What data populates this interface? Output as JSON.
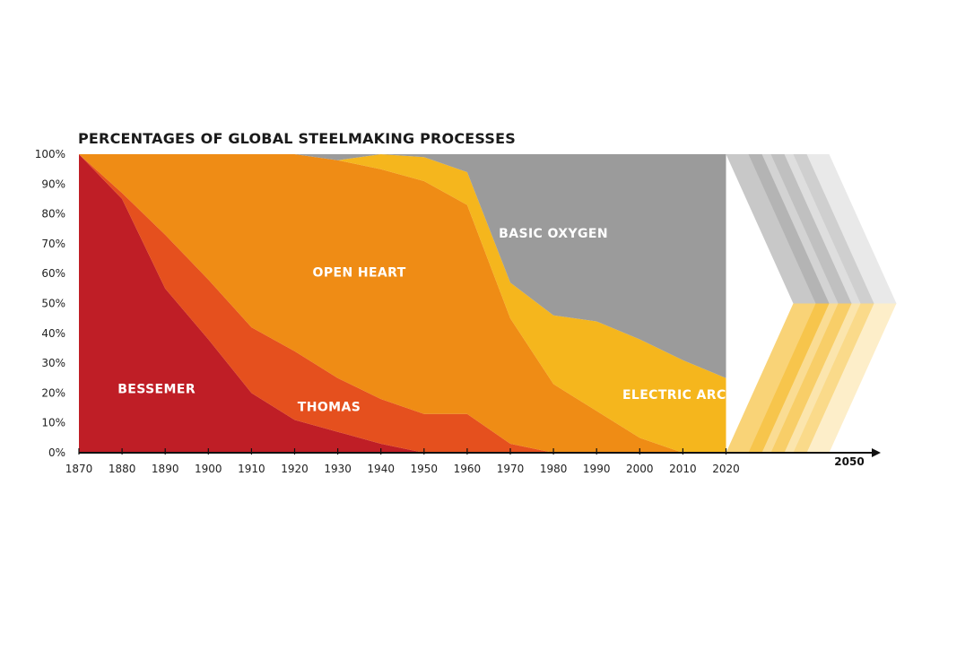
{
  "chart_data": {
    "type": "area",
    "stacked": true,
    "title": "PERCENTAGES OF GLOBAL STEELMAKING PROCESSES",
    "xlabel": "",
    "ylabel": "",
    "x": [
      1870,
      1880,
      1890,
      1900,
      1910,
      1920,
      1930,
      1940,
      1950,
      1960,
      1970,
      1980,
      1990,
      2000,
      2010,
      2020
    ],
    "x_ticks": [
      "1870",
      "1880",
      "1890",
      "1900",
      "1910",
      "1920",
      "1930",
      "1940",
      "1950",
      "1960",
      "1970",
      "1980",
      "1990",
      "2000",
      "2010",
      "2020"
    ],
    "x_axis_end_label": "2050",
    "x_axis_end_value": 2050,
    "y_ticks": [
      "0%",
      "10%",
      "20%",
      "30%",
      "40%",
      "50%",
      "60%",
      "70%",
      "80%",
      "90%",
      "100%"
    ],
    "ylim": [
      0,
      100
    ],
    "series": [
      {
        "name": "BESSEMER",
        "color": "#bf1e26",
        "values": [
          100,
          85,
          55,
          38,
          20,
          11,
          7,
          3,
          0,
          0,
          0,
          0,
          0,
          0,
          0,
          0
        ]
      },
      {
        "name": "THOMAS",
        "color": "#e5501e",
        "values": [
          0,
          2,
          18,
          20,
          22,
          23,
          18,
          15,
          13,
          13,
          3,
          0,
          0,
          0,
          0,
          0
        ]
      },
      {
        "name": "OPEN HEART",
        "color": "#ef8c15",
        "values": [
          0,
          13,
          27,
          42,
          58,
          66,
          73,
          77,
          78,
          70,
          42,
          23,
          14,
          5,
          0,
          0
        ]
      },
      {
        "name": "ELECTRIC ARC",
        "color": "#f5b61d",
        "values": [
          0,
          0,
          0,
          0,
          0,
          0,
          0,
          5,
          8,
          11,
          12,
          23,
          30,
          33,
          31,
          25
        ]
      },
      {
        "name": "BASIC OXYGEN",
        "color": "#9b9b9b",
        "values": [
          0,
          0,
          0,
          0,
          0,
          0,
          2,
          0,
          1,
          6,
          43,
          54,
          56,
          62,
          69,
          75
        ]
      }
    ],
    "projection": {
      "to": 2050,
      "style": "faded chevrons"
    },
    "grid": false,
    "legend": "labels inside areas"
  }
}
